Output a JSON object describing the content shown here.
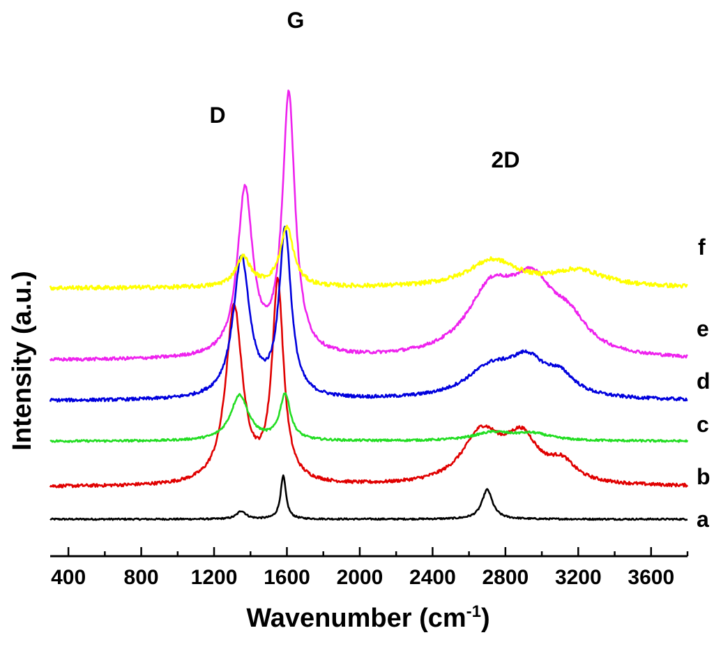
{
  "chart_data": {
    "type": "line",
    "xlabel": "Wavenumber (cm",
    "xlabel_superscript": "-1",
    "xlabel_suffix": ")",
    "ylabel": "Intensity (a.u.)",
    "xlim": [
      300,
      3800
    ],
    "xticks": [
      400,
      800,
      1200,
      1600,
      2000,
      2400,
      2800,
      3200,
      3600
    ],
    "xtick_labels": [
      "400",
      "800",
      "1200",
      "1600",
      "2000",
      "2400",
      "2800",
      "3200",
      "3600"
    ],
    "y_units": "arbitrary (offset stacked)",
    "annotations": [
      {
        "text": "D",
        "x": 1340,
        "y": 14.2
      },
      {
        "text": "G",
        "x": 1600,
        "y": 17.2
      },
      {
        "text": "2D",
        "x": 2780,
        "y": 12.3
      }
    ],
    "series": [
      {
        "name": "a",
        "color": "#000000",
        "baseline": 0.0,
        "noise": 0.03,
        "peaks": [
          [
            1350,
            0.3,
            30
          ],
          [
            1580,
            1.6,
            18
          ],
          [
            2700,
            1.1,
            35
          ]
        ]
      },
      {
        "name": "b",
        "color": "#e00000",
        "baseline": 1.2,
        "noise": 0.06,
        "peaks": [
          [
            1310,
            6.6,
            55
          ],
          [
            1550,
            7.4,
            38
          ],
          [
            2670,
            1.9,
            130
          ],
          [
            2890,
            1.6,
            110
          ],
          [
            3110,
            0.7,
            90
          ]
        ]
      },
      {
        "name": "c",
        "color": "#22dd22",
        "baseline": 2.9,
        "noise": 0.04,
        "peaks": [
          [
            1340,
            1.7,
            60
          ],
          [
            1590,
            1.7,
            35
          ],
          [
            2730,
            0.3,
            130
          ],
          [
            2950,
            0.25,
            120
          ]
        ]
      },
      {
        "name": "d",
        "color": "#0000dd",
        "baseline": 4.4,
        "noise": 0.06,
        "peaks": [
          [
            1350,
            5.2,
            55
          ],
          [
            1590,
            6.2,
            40
          ],
          [
            2720,
            1.1,
            170
          ],
          [
            2920,
            1.2,
            120
          ],
          [
            3100,
            0.7,
            100
          ]
        ]
      },
      {
        "name": "e",
        "color": "#ee22ee",
        "baseline": 5.9,
        "noise": 0.06,
        "peaks": [
          [
            1370,
            6.2,
            50
          ],
          [
            1610,
            9.7,
            42
          ],
          [
            2720,
            2.3,
            160
          ],
          [
            2950,
            2.4,
            150
          ],
          [
            3150,
            1.0,
            120
          ]
        ]
      },
      {
        "name": "f",
        "color": "#ffff00",
        "baseline": 8.6,
        "noise": 0.08,
        "peaks": [
          [
            1360,
            1.1,
            50
          ],
          [
            1600,
            2.2,
            45
          ],
          [
            2730,
            1.0,
            170
          ],
          [
            3200,
            0.6,
            180
          ]
        ]
      }
    ]
  }
}
